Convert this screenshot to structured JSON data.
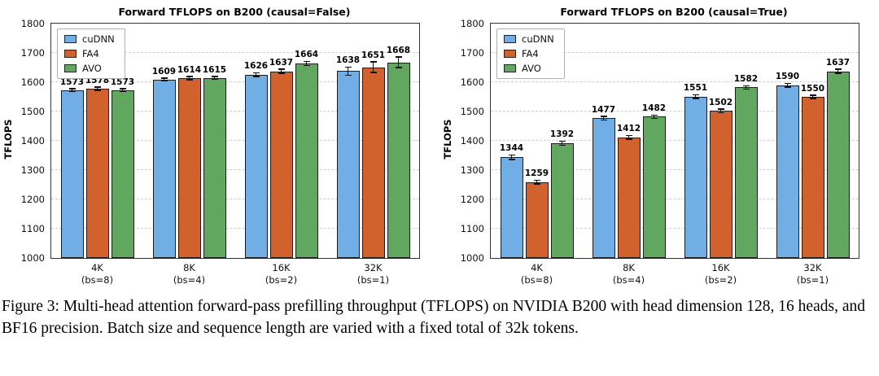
{
  "figure": {
    "caption": "Figure 3: Multi-head attention forward-pass prefilling throughput (TFLOPS) on NVIDIA B200 with head dimension 128, 16 heads, and BF16 precision. Batch size and sequence length are varied with a fixed total of 32k tokens."
  },
  "chart_data": [
    {
      "type": "bar",
      "title": "Forward TFLOPS on B200 (causal=False)",
      "xlabel": "",
      "ylabel": "TFLOPS",
      "ylim": [
        1000,
        1800
      ],
      "yticks": [
        1000,
        1100,
        1200,
        1300,
        1400,
        1500,
        1600,
        1700,
        1800
      ],
      "grid": true,
      "legend_position": "upper left",
      "categories": [
        {
          "label": "4K",
          "sub": "(bs=8)"
        },
        {
          "label": "8K",
          "sub": "(bs=4)"
        },
        {
          "label": "16K",
          "sub": "(bs=2)"
        },
        {
          "label": "32K",
          "sub": "(bs=1)"
        }
      ],
      "series": [
        {
          "name": "cuDNN",
          "color": "#72aee6",
          "values": [
            1573,
            1609,
            1626,
            1638
          ],
          "errors": [
            3,
            3,
            4,
            12
          ]
        },
        {
          "name": "FA4",
          "color": "#d2622d",
          "values": [
            1578,
            1614,
            1637,
            1651
          ],
          "errors": [
            3,
            3,
            5,
            16
          ]
        },
        {
          "name": "AVO",
          "color": "#61a75f",
          "values": [
            1573,
            1615,
            1664,
            1668
          ],
          "errors": [
            3,
            3,
            5,
            16
          ]
        }
      ]
    },
    {
      "type": "bar",
      "title": "Forward TFLOPS on B200 (causal=True)",
      "xlabel": "",
      "ylabel": "TFLOPS",
      "ylim": [
        1000,
        1800
      ],
      "yticks": [
        1000,
        1100,
        1200,
        1300,
        1400,
        1500,
        1600,
        1700,
        1800
      ],
      "grid": true,
      "legend_position": "upper left",
      "categories": [
        {
          "label": "4K",
          "sub": "(bs=8)"
        },
        {
          "label": "8K",
          "sub": "(bs=4)"
        },
        {
          "label": "16K",
          "sub": "(bs=2)"
        },
        {
          "label": "32K",
          "sub": "(bs=1)"
        }
      ],
      "series": [
        {
          "name": "cuDNN",
          "color": "#72aee6",
          "values": [
            1344,
            1477,
            1551,
            1590
          ],
          "errors": [
            6,
            4,
            4,
            4
          ]
        },
        {
          "name": "FA4",
          "color": "#d2622d",
          "values": [
            1259,
            1412,
            1502,
            1550
          ],
          "errors": [
            4,
            4,
            4,
            4
          ]
        },
        {
          "name": "AVO",
          "color": "#61a75f",
          "values": [
            1392,
            1482,
            1582,
            1637
          ],
          "errors": [
            5,
            4,
            4,
            5
          ]
        }
      ]
    }
  ]
}
